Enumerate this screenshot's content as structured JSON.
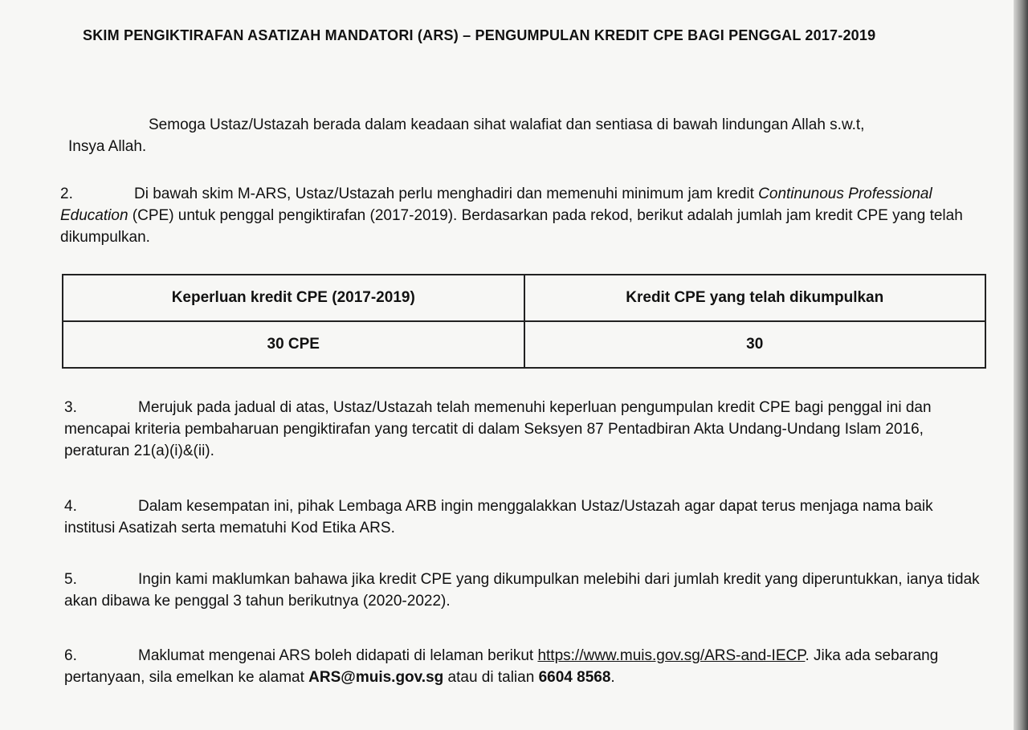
{
  "title": "SKIM PENGIKTIRAFAN ASATIZAH MANDATORI (ARS) – PENGUMPULAN KREDIT CPE BAGI PENGGAL 2017-2019",
  "p1": "Semoga Ustaz/Ustazah berada dalam keadaan sihat walafiat dan sentiasa di bawah lindungan Allah s.w.t,",
  "p1b": "Insya Allah.",
  "p2": {
    "num": "2.",
    "a": "Di bawah skim M-ARS, Ustaz/Ustazah perlu menghadiri dan memenuhi minimum jam kredit ",
    "b": "Continunous Professional Education",
    "c": " (CPE) untuk penggal pengiktirafan (2017-2019). Berdasarkan pada rekod, berikut adalah jumlah jam kredit CPE yang telah dikumpulkan."
  },
  "table": {
    "headers": [
      "Keperluan kredit CPE (2017-2019)",
      "Kredit CPE yang telah dikumpulkan"
    ],
    "row": [
      "30 CPE",
      "30"
    ]
  },
  "p3": {
    "num": "3.",
    "text": "Merujuk pada jadual di atas, Ustaz/Ustazah telah memenuhi keperluan pengumpulan kredit CPE bagi penggal ini dan mencapai kriteria pembaharuan pengiktirafan yang tercatit di dalam Seksyen 87 Pentadbiran Akta Undang-Undang Islam 2016, peraturan 21(a)(i)&(ii)."
  },
  "p4": {
    "num": "4.",
    "text": "Dalam kesempatan ini, pihak Lembaga ARB ingin menggalakkan Ustaz/Ustazah agar dapat terus menjaga nama baik institusi Asatizah serta mematuhi Kod Etika ARS."
  },
  "p5": {
    "num": "5.",
    "text": "Ingin kami maklumkan bahawa jika kredit CPE yang dikumpulkan melebihi dari jumlah kredit yang diperuntukkan, ianya tidak akan dibawa ke penggal 3 tahun berikutnya (2020-2022)."
  },
  "p6": {
    "num": "6.",
    "a": "Maklumat mengenai ARS boleh didapati di lelaman berikut ",
    "link": "https://www.muis.gov.sg/ARS-and-IECP",
    "b": ". Jika ada sebarang pertanyaan, sila emelkan ke alamat ",
    "email": "ARS@muis.gov.sg",
    "c": " atau di talian ",
    "phone": "6604 8568",
    "d": "."
  }
}
